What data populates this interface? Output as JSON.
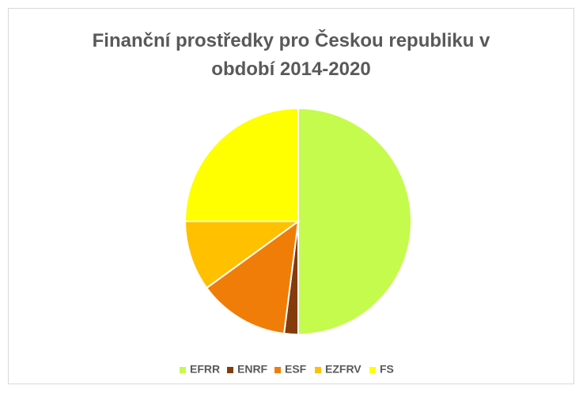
{
  "chart_data": {
    "type": "pie",
    "title": "Finanční prostředky pro Českou republiku v období 2014-2020",
    "categories": [
      "EFRR",
      "ENRF",
      "ESF",
      "EZFRV",
      "FS"
    ],
    "values": [
      50,
      2,
      13,
      10,
      25
    ],
    "colors": [
      "#c5fb4c",
      "#843c0c",
      "#f07d08",
      "#ffc000",
      "#ffff00"
    ],
    "legend": "bottom"
  }
}
